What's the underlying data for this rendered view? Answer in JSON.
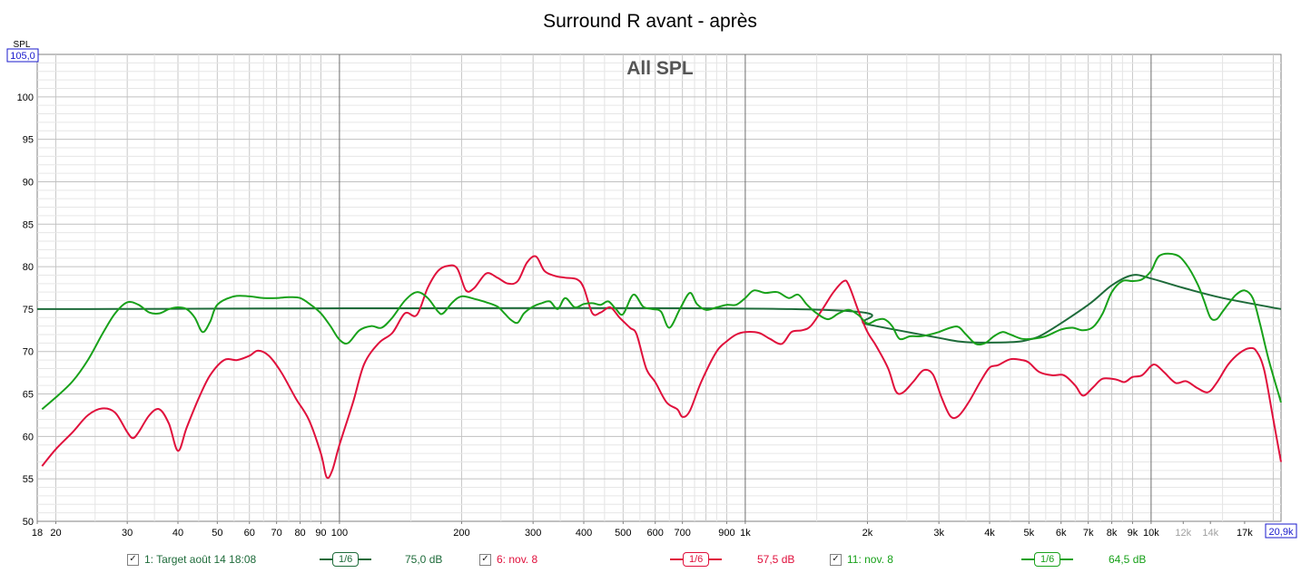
{
  "chart_data": {
    "type": "line",
    "title": "Surround R avant - après",
    "subtitle": "All SPL",
    "ylabel": "SPL",
    "x_scale": "log",
    "xlim": [
      18,
      20900
    ],
    "ylim": [
      50,
      105
    ],
    "grid": true,
    "y_ticks": [
      "50",
      "55",
      "60",
      "65",
      "70",
      "75",
      "80",
      "85",
      "90",
      "95",
      "100"
    ],
    "y_top_label": "105,0",
    "x_ticks": [
      {
        "v": 18,
        "t": "18"
      },
      {
        "v": 20,
        "t": "20"
      },
      {
        "v": 30,
        "t": "30"
      },
      {
        "v": 40,
        "t": "40"
      },
      {
        "v": 50,
        "t": "50"
      },
      {
        "v": 60,
        "t": "60"
      },
      {
        "v": 70,
        "t": "70"
      },
      {
        "v": 80,
        "t": "80"
      },
      {
        "v": 90,
        "t": "90"
      },
      {
        "v": 100,
        "t": "100"
      },
      {
        "v": 200,
        "t": "200"
      },
      {
        "v": 300,
        "t": "300"
      },
      {
        "v": 400,
        "t": "400"
      },
      {
        "v": 500,
        "t": "500"
      },
      {
        "v": 600,
        "t": "600"
      },
      {
        "v": 700,
        "t": "700"
      },
      {
        "v": 900,
        "t": "900"
      },
      {
        "v": 1000,
        "t": "1k"
      },
      {
        "v": 2000,
        "t": "2k"
      },
      {
        "v": 3000,
        "t": "3k"
      },
      {
        "v": 4000,
        "t": "4k"
      },
      {
        "v": 5000,
        "t": "5k"
      },
      {
        "v": 6000,
        "t": "6k"
      },
      {
        "v": 7000,
        "t": "7k"
      },
      {
        "v": 8000,
        "t": "8k"
      },
      {
        "v": 9000,
        "t": "9k"
      },
      {
        "v": 10000,
        "t": "10k"
      },
      {
        "v": 12000,
        "t": "12k",
        "dim": true
      },
      {
        "v": 14000,
        "t": "14k",
        "dim": true
      },
      {
        "v": 17000,
        "t": "17k"
      }
    ],
    "x_right_label": "20,9k",
    "series": [
      {
        "name": "1: Target août 14 18:08",
        "color": "#1e6b3a",
        "points": [
          [
            18,
            75
          ],
          [
            1300,
            75
          ],
          [
            2000,
            73.2
          ],
          [
            3000,
            71.6
          ],
          [
            3500,
            71.1
          ],
          [
            4500,
            71.1
          ],
          [
            5000,
            71.4
          ],
          [
            5500,
            72.2
          ],
          [
            7000,
            75.5
          ],
          [
            8000,
            77.8
          ],
          [
            9000,
            79
          ],
          [
            10000,
            78.6
          ],
          [
            12000,
            77.5
          ],
          [
            15000,
            76.3
          ],
          [
            20900,
            75
          ]
        ]
      },
      {
        "name": "6: nov. 8",
        "color": "#e0103c",
        "points": [
          [
            18.5,
            56.5
          ],
          [
            20,
            58.5
          ],
          [
            22,
            60.5
          ],
          [
            24,
            62.5
          ],
          [
            26,
            63.3
          ],
          [
            28,
            62.8
          ],
          [
            30,
            60.5
          ],
          [
            31,
            59.8
          ],
          [
            32,
            60.5
          ],
          [
            34,
            62.5
          ],
          [
            36,
            63.2
          ],
          [
            38,
            61.5
          ],
          [
            40,
            58.3
          ],
          [
            42,
            61
          ],
          [
            45,
            64.5
          ],
          [
            48,
            67.2
          ],
          [
            52,
            69
          ],
          [
            56,
            69
          ],
          [
            60,
            69.5
          ],
          [
            63,
            70.1
          ],
          [
            67,
            69.5
          ],
          [
            72,
            67.5
          ],
          [
            78,
            64.5
          ],
          [
            84,
            62
          ],
          [
            90,
            58
          ],
          [
            93,
            55.2
          ],
          [
            96,
            56
          ],
          [
            100,
            59
          ],
          [
            108,
            64
          ],
          [
            115,
            68.5
          ],
          [
            125,
            71
          ],
          [
            135,
            72.2
          ],
          [
            145,
            74.5
          ],
          [
            155,
            74.3
          ],
          [
            165,
            77.5
          ],
          [
            175,
            79.5
          ],
          [
            185,
            80.1
          ],
          [
            195,
            79.8
          ],
          [
            205,
            77.2
          ],
          [
            215,
            77.5
          ],
          [
            230,
            79.2
          ],
          [
            245,
            78.7
          ],
          [
            260,
            78
          ],
          [
            275,
            78.3
          ],
          [
            290,
            80.5
          ],
          [
            305,
            81.2
          ],
          [
            320,
            79.5
          ],
          [
            340,
            78.9
          ],
          [
            360,
            78.7
          ],
          [
            385,
            78.5
          ],
          [
            400,
            77.5
          ],
          [
            420,
            74.5
          ],
          [
            440,
            74.6
          ],
          [
            465,
            75.2
          ],
          [
            490,
            74
          ],
          [
            520,
            72.8
          ],
          [
            540,
            72
          ],
          [
            570,
            68
          ],
          [
            600,
            66.4
          ],
          [
            640,
            64
          ],
          [
            680,
            63.2
          ],
          [
            700,
            62.3
          ],
          [
            730,
            63
          ],
          [
            780,
            66.5
          ],
          [
            850,
            70
          ],
          [
            900,
            71.2
          ],
          [
            950,
            72
          ],
          [
            1000,
            72.3
          ],
          [
            1080,
            72.2
          ],
          [
            1150,
            71.5
          ],
          [
            1230,
            70.9
          ],
          [
            1300,
            72.3
          ],
          [
            1380,
            72.5
          ],
          [
            1450,
            73
          ],
          [
            1550,
            75
          ],
          [
            1650,
            77
          ],
          [
            1750,
            78.3
          ],
          [
            1800,
            77.8
          ],
          [
            1900,
            74.8
          ],
          [
            2000,
            72.3
          ],
          [
            2100,
            70.7
          ],
          [
            2250,
            68
          ],
          [
            2350,
            65.3
          ],
          [
            2450,
            65.2
          ],
          [
            2600,
            66.5
          ],
          [
            2750,
            67.8
          ],
          [
            2900,
            67.3
          ],
          [
            3050,
            64.5
          ],
          [
            3200,
            62.4
          ],
          [
            3350,
            62.4
          ],
          [
            3550,
            64
          ],
          [
            3800,
            66.5
          ],
          [
            4000,
            68.1
          ],
          [
            4200,
            68.4
          ],
          [
            4500,
            69.1
          ],
          [
            4800,
            69
          ],
          [
            5000,
            68.7
          ],
          [
            5300,
            67.6
          ],
          [
            5700,
            67.2
          ],
          [
            6100,
            67.2
          ],
          [
            6500,
            66
          ],
          [
            6800,
            64.8
          ],
          [
            7200,
            65.8
          ],
          [
            7600,
            66.8
          ],
          [
            8200,
            66.7
          ],
          [
            8600,
            66.4
          ],
          [
            9000,
            67
          ],
          [
            9500,
            67.2
          ],
          [
            10000,
            68.3
          ],
          [
            10300,
            68.4
          ],
          [
            10800,
            67.5
          ],
          [
            11500,
            66.3
          ],
          [
            12200,
            66.5
          ],
          [
            13000,
            65.7
          ],
          [
            13800,
            65.2
          ],
          [
            14500,
            66.3
          ],
          [
            15500,
            68.5
          ],
          [
            16500,
            69.8
          ],
          [
            17500,
            70.4
          ],
          [
            18200,
            70
          ],
          [
            19000,
            67.8
          ],
          [
            20000,
            62
          ],
          [
            20900,
            57
          ]
        ]
      },
      {
        "name": "11: nov. 8",
        "color": "#18a11a",
        "points": [
          [
            18.5,
            63.2
          ],
          [
            20,
            64.6
          ],
          [
            22,
            66.5
          ],
          [
            24,
            69
          ],
          [
            26,
            72
          ],
          [
            28,
            74.5
          ],
          [
            30,
            75.8
          ],
          [
            32,
            75.5
          ],
          [
            34,
            74.6
          ],
          [
            36,
            74.5
          ],
          [
            38,
            75
          ],
          [
            40,
            75.2
          ],
          [
            42,
            75
          ],
          [
            44,
            74
          ],
          [
            46,
            72.3
          ],
          [
            48,
            73.5
          ],
          [
            50,
            75.5
          ],
          [
            55,
            76.5
          ],
          [
            60,
            76.5
          ],
          [
            65,
            76.3
          ],
          [
            70,
            76.3
          ],
          [
            75,
            76.4
          ],
          [
            80,
            76.3
          ],
          [
            85,
            75.5
          ],
          [
            90,
            74.5
          ],
          [
            95,
            73
          ],
          [
            100,
            71.4
          ],
          [
            105,
            71
          ],
          [
            112,
            72.5
          ],
          [
            120,
            73
          ],
          [
            127,
            72.8
          ],
          [
            135,
            74
          ],
          [
            145,
            76
          ],
          [
            155,
            77
          ],
          [
            165,
            76.3
          ],
          [
            175,
            74.7
          ],
          [
            180,
            74.5
          ],
          [
            190,
            75.8
          ],
          [
            200,
            76.5
          ],
          [
            215,
            76.2
          ],
          [
            230,
            75.8
          ],
          [
            245,
            75.3
          ],
          [
            255,
            74.5
          ],
          [
            265,
            73.7
          ],
          [
            275,
            73.4
          ],
          [
            285,
            74.5
          ],
          [
            300,
            75.3
          ],
          [
            315,
            75.7
          ],
          [
            330,
            75.9
          ],
          [
            345,
            75
          ],
          [
            360,
            76.3
          ],
          [
            380,
            75.2
          ],
          [
            400,
            75.6
          ],
          [
            420,
            75.7
          ],
          [
            440,
            75.5
          ],
          [
            460,
            75.9
          ],
          [
            480,
            75
          ],
          [
            500,
            74.4
          ],
          [
            530,
            76.7
          ],
          [
            560,
            75.3
          ],
          [
            590,
            75
          ],
          [
            620,
            74.7
          ],
          [
            650,
            72.8
          ],
          [
            690,
            75
          ],
          [
            730,
            76.9
          ],
          [
            760,
            75.6
          ],
          [
            800,
            74.9
          ],
          [
            850,
            75.2
          ],
          [
            900,
            75.5
          ],
          [
            950,
            75.5
          ],
          [
            1000,
            76.3
          ],
          [
            1050,
            77.2
          ],
          [
            1120,
            76.9
          ],
          [
            1200,
            77
          ],
          [
            1280,
            76.3
          ],
          [
            1350,
            76.7
          ],
          [
            1420,
            75.5
          ],
          [
            1500,
            74.5
          ],
          [
            1600,
            73.8
          ],
          [
            1700,
            74.5
          ],
          [
            1800,
            74.9
          ],
          [
            1900,
            74.3
          ],
          [
            2000,
            73.3
          ],
          [
            2100,
            73.7
          ],
          [
            2200,
            73.8
          ],
          [
            2300,
            73
          ],
          [
            2400,
            71.5
          ],
          [
            2550,
            71.8
          ],
          [
            2700,
            71.8
          ],
          [
            2850,
            72
          ],
          [
            3000,
            72.3
          ],
          [
            3200,
            72.8
          ],
          [
            3350,
            72.9
          ],
          [
            3500,
            72
          ],
          [
            3700,
            70.9
          ],
          [
            3900,
            71
          ],
          [
            4100,
            71.8
          ],
          [
            4300,
            72.3
          ],
          [
            4500,
            72
          ],
          [
            4800,
            71.5
          ],
          [
            5100,
            71.5
          ],
          [
            5500,
            71.8
          ],
          [
            6000,
            72.6
          ],
          [
            6400,
            72.8
          ],
          [
            6800,
            72.5
          ],
          [
            7200,
            72.9
          ],
          [
            7600,
            74.5
          ],
          [
            8000,
            77
          ],
          [
            8500,
            78.3
          ],
          [
            9000,
            78.3
          ],
          [
            9500,
            78.5
          ],
          [
            10000,
            79.5
          ],
          [
            10500,
            81.3
          ],
          [
            11500,
            81.4
          ],
          [
            12200,
            80.3
          ],
          [
            13000,
            78
          ],
          [
            13500,
            76
          ],
          [
            14000,
            74
          ],
          [
            14500,
            73.8
          ],
          [
            15000,
            74.7
          ],
          [
            15500,
            75.6
          ],
          [
            16200,
            76.7
          ],
          [
            17000,
            77.2
          ],
          [
            17800,
            76.3
          ],
          [
            18500,
            73.5
          ],
          [
            19500,
            69
          ],
          [
            20900,
            64
          ]
        ]
      }
    ]
  },
  "legend": [
    {
      "label": "1: Target août 14 18:08",
      "smoothing": "1/6",
      "value": "75,0 dB",
      "color": "#1e6b3a"
    },
    {
      "label": "6: nov. 8",
      "smoothing": "1/6",
      "value": "57,5 dB",
      "color": "#e0103c"
    },
    {
      "label": "11: nov. 8",
      "smoothing": "1/6",
      "value": "64,5 dB",
      "color": "#18a11a"
    }
  ]
}
